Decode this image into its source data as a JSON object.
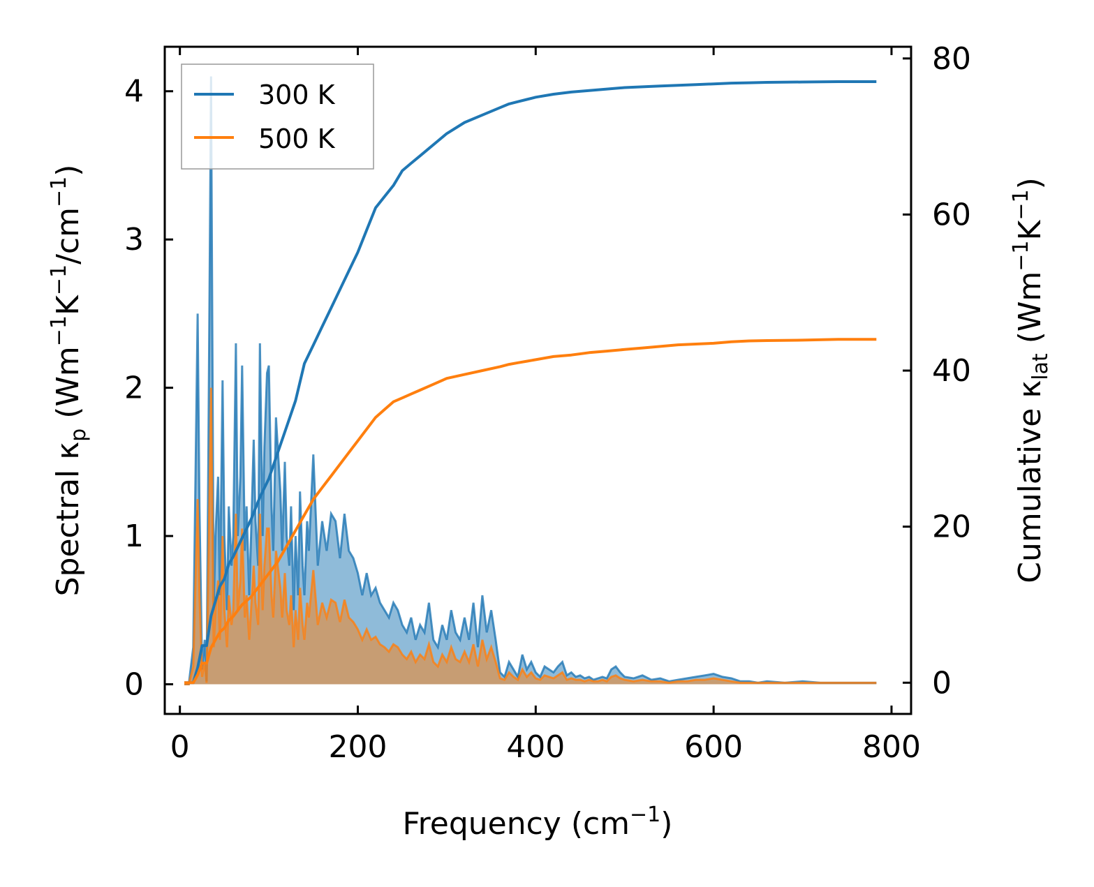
{
  "chart_data": {
    "type": "line",
    "xlabel": "Frequency (cm",
    "xlabel_sup": "−1",
    "xlabel_end": ")",
    "ylabel_left": {
      "a": "Spectral κ",
      "sub": "p",
      "b": " (Wm",
      "sup1": "−1",
      "c": "K",
      "sup2": "−1",
      "d": "/cm",
      "sup3": "−1",
      "e": ")"
    },
    "ylabel_right": {
      "a": "Cumulative κ",
      "sub": "lat",
      "b": " (Wm",
      "sup1": "−1",
      "c": "K",
      "sup2": "−1",
      "e": ")"
    },
    "xlim": [
      -17,
      822
    ],
    "ylim_left": [
      -0.2,
      4.3
    ],
    "ylim_right": [
      -4,
      81.5
    ],
    "x_ticks": [
      0,
      200,
      400,
      600,
      800
    ],
    "x_tick_labels": [
      "0",
      "200",
      "400",
      "600",
      "800"
    ],
    "y_left_ticks": [
      0,
      1,
      2,
      3,
      4
    ],
    "y_left_tick_labels": [
      "0",
      "1",
      "2",
      "3",
      "4"
    ],
    "y_right_ticks": [
      0,
      20,
      40,
      60,
      80
    ],
    "y_right_tick_labels": [
      "0",
      "20",
      "40",
      "60",
      "80"
    ],
    "legend": {
      "placement": "top-left",
      "entries": [
        "300 K",
        "500 K"
      ]
    },
    "colors": {
      "300K": "#1f77b4",
      "500K": "#ff7f0e"
    },
    "spectral": {
      "x": [
        5,
        10,
        15,
        20,
        22,
        25,
        28,
        30,
        32,
        35,
        38,
        40,
        43,
        45,
        48,
        50,
        53,
        55,
        58,
        60,
        63,
        65,
        68,
        70,
        73,
        75,
        78,
        80,
        83,
        85,
        88,
        90,
        93,
        95,
        98,
        100,
        103,
        105,
        108,
        110,
        113,
        115,
        118,
        120,
        123,
        125,
        128,
        130,
        133,
        135,
        138,
        140,
        143,
        145,
        150,
        155,
        160,
        165,
        170,
        175,
        180,
        185,
        190,
        195,
        200,
        205,
        210,
        215,
        220,
        225,
        230,
        235,
        240,
        245,
        250,
        255,
        260,
        265,
        270,
        275,
        280,
        285,
        290,
        295,
        300,
        305,
        310,
        315,
        320,
        325,
        330,
        335,
        340,
        345,
        350,
        355,
        360,
        365,
        370,
        375,
        380,
        385,
        390,
        395,
        400,
        405,
        410,
        415,
        420,
        425,
        430,
        435,
        440,
        445,
        450,
        455,
        460,
        465,
        470,
        475,
        480,
        485,
        490,
        495,
        500,
        510,
        520,
        530,
        540,
        550,
        560,
        570,
        580,
        590,
        600,
        610,
        620,
        630,
        640,
        650,
        660,
        680,
        700,
        720,
        740,
        760,
        783
      ],
      "s300": [
        0,
        0,
        0.25,
        2.5,
        1.2,
        0.1,
        0.3,
        0.02,
        1.5,
        4.1,
        0.5,
        1.0,
        1.4,
        0.6,
        2.05,
        1.0,
        0.5,
        1.2,
        0.8,
        1.0,
        2.3,
        1.0,
        1.4,
        2.15,
        0.9,
        1.2,
        0.6,
        1.0,
        1.65,
        1.1,
        0.8,
        2.3,
        1.0,
        1.6,
        2.1,
        2.15,
        1.2,
        0.9,
        1.8,
        1.6,
        1.3,
        0.9,
        1.5,
        1.0,
        0.8,
        1.2,
        0.5,
        1.0,
        0.6,
        1.3,
        0.8,
        0.6,
        1.1,
        0.9,
        1.55,
        0.8,
        1.1,
        0.9,
        1.15,
        1.1,
        0.85,
        1.15,
        0.9,
        0.85,
        0.75,
        0.6,
        0.75,
        0.6,
        0.65,
        0.55,
        0.5,
        0.45,
        0.55,
        0.5,
        0.4,
        0.35,
        0.45,
        0.3,
        0.4,
        0.35,
        0.55,
        0.3,
        0.25,
        0.4,
        0.3,
        0.5,
        0.35,
        0.3,
        0.45,
        0.3,
        0.55,
        0.25,
        0.6,
        0.35,
        0.5,
        0.3,
        0.08,
        0.05,
        0.15,
        0.1,
        0.05,
        0.2,
        0.1,
        0.15,
        0.08,
        0.05,
        0.12,
        0.1,
        0.08,
        0.12,
        0.15,
        0.06,
        0.08,
        0.05,
        0.06,
        0.04,
        0.05,
        0.03,
        0.04,
        0.05,
        0.04,
        0.1,
        0.12,
        0.08,
        0.05,
        0.04,
        0.06,
        0.03,
        0.04,
        0.02,
        0.03,
        0.04,
        0.05,
        0.06,
        0.07,
        0.05,
        0.04,
        0.02,
        0.02,
        0.01,
        0.02,
        0.01,
        0.02,
        0.01,
        0.01,
        0.01,
        0.01
      ],
      "s500": [
        0,
        0,
        0.12,
        1.25,
        0.6,
        0.05,
        0.15,
        0.01,
        0.75,
        2.0,
        0.25,
        0.5,
        0.7,
        0.3,
        1.0,
        0.5,
        0.25,
        0.6,
        0.4,
        0.5,
        1.15,
        0.5,
        0.7,
        1.05,
        0.45,
        0.6,
        0.3,
        0.5,
        0.8,
        0.55,
        0.4,
        1.15,
        0.5,
        0.8,
        1.05,
        1.05,
        0.6,
        0.45,
        0.9,
        0.8,
        0.65,
        0.45,
        0.75,
        0.5,
        0.4,
        0.6,
        0.25,
        0.5,
        0.3,
        0.65,
        0.4,
        0.3,
        0.55,
        0.45,
        0.77,
        0.4,
        0.55,
        0.45,
        0.57,
        0.55,
        0.42,
        0.57,
        0.45,
        0.42,
        0.37,
        0.3,
        0.37,
        0.3,
        0.32,
        0.27,
        0.25,
        0.22,
        0.27,
        0.25,
        0.2,
        0.17,
        0.22,
        0.15,
        0.2,
        0.17,
        0.27,
        0.15,
        0.12,
        0.2,
        0.15,
        0.25,
        0.17,
        0.15,
        0.22,
        0.15,
        0.27,
        0.12,
        0.3,
        0.17,
        0.25,
        0.15,
        0.04,
        0.03,
        0.08,
        0.05,
        0.03,
        0.1,
        0.05,
        0.08,
        0.04,
        0.03,
        0.06,
        0.05,
        0.04,
        0.06,
        0.08,
        0.03,
        0.04,
        0.03,
        0.03,
        0.02,
        0.03,
        0.02,
        0.02,
        0.03,
        0.02,
        0.05,
        0.06,
        0.04,
        0.03,
        0.02,
        0.03,
        0.02,
        0.02,
        0.01,
        0.02,
        0.02,
        0.03,
        0.03,
        0.04,
        0.03,
        0.02,
        0.01,
        0.01,
        0.01,
        0.01,
        0.01,
        0.01,
        0.01,
        0.01,
        0.01,
        0.01
      ]
    },
    "cumulative": {
      "x": [
        5,
        15,
        20,
        25,
        30,
        35,
        40,
        45,
        50,
        55,
        60,
        70,
        80,
        90,
        100,
        110,
        120,
        130,
        140,
        150,
        160,
        170,
        180,
        190,
        200,
        210,
        220,
        230,
        240,
        250,
        260,
        270,
        280,
        290,
        300,
        320,
        340,
        360,
        370,
        380,
        390,
        400,
        420,
        440,
        460,
        480,
        500,
        520,
        540,
        560,
        580,
        600,
        620,
        640,
        660,
        700,
        740,
        783
      ],
      "c300": [
        0,
        0,
        2,
        5,
        5,
        9,
        11,
        13,
        14,
        16,
        17,
        19.5,
        22,
        25,
        27.5,
        31,
        34.5,
        38,
        43,
        45.5,
        48,
        50.5,
        53,
        55.5,
        58,
        61,
        64,
        65.5,
        67,
        69,
        70,
        71,
        72,
        73,
        74,
        75.5,
        76.5,
        77.5,
        78,
        78.3,
        78.6,
        78.9,
        79.3,
        79.6,
        79.8,
        80,
        80.2,
        80.3,
        80.4,
        80.5,
        80.6,
        80.7,
        80.8,
        80.85,
        80.9,
        80.95,
        81,
        81
      ],
      "c300_scale": 0.951,
      "c500": [
        0,
        0,
        1,
        2.5,
        2.5,
        4.5,
        5.5,
        6.5,
        7,
        8,
        8.5,
        10,
        11,
        12.5,
        14,
        15.5,
        17.5,
        19.5,
        21.5,
        23.5,
        25,
        26.5,
        28,
        29.5,
        31,
        32.5,
        34,
        35,
        36,
        36.5,
        37,
        37.5,
        38,
        38.5,
        39,
        39.5,
        40,
        40.5,
        40.8,
        41,
        41.2,
        41.4,
        41.8,
        42,
        42.3,
        42.5,
        42.7,
        42.9,
        43.1,
        43.3,
        43.4,
        43.5,
        43.7,
        43.8,
        43.85,
        43.9,
        44,
        44
      ]
    }
  }
}
